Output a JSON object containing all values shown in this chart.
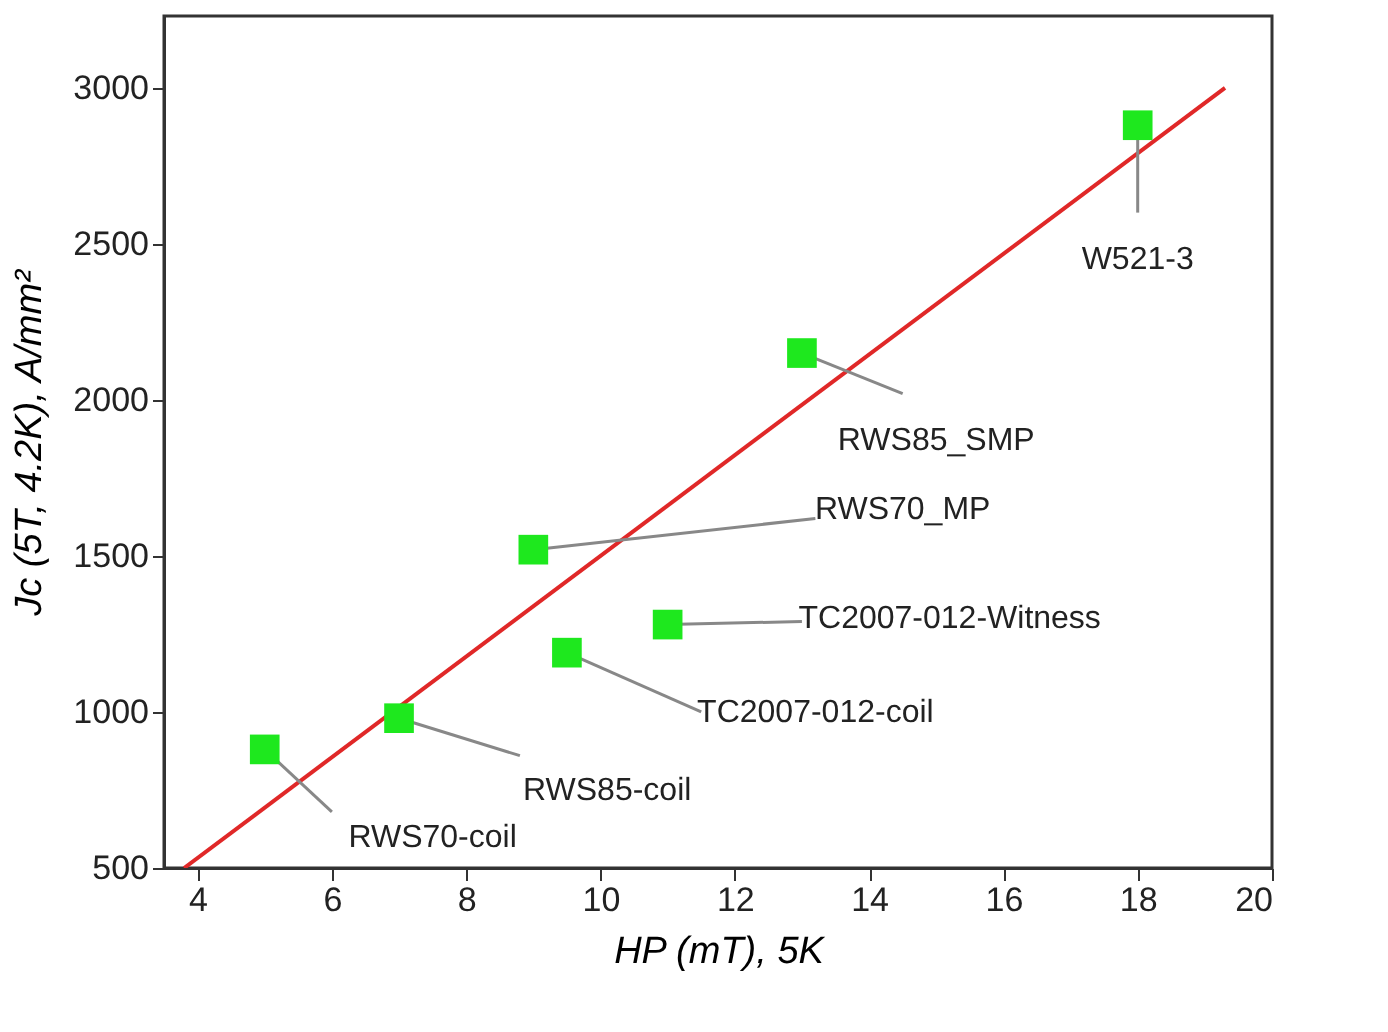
{
  "chart_data": {
    "type": "scatter",
    "xlabel": "HP (mT), 5K",
    "ylabel": "Jc (5T, 4.2K), A/mm²",
    "xlim": [
      3.5,
      20
    ],
    "xticks": [
      4,
      6,
      8,
      10,
      12,
      14,
      16,
      18,
      20
    ],
    "ylim": [
      500,
      3230
    ],
    "yticks": [
      500,
      1000,
      1500,
      2000,
      2500,
      3000
    ],
    "grid": false,
    "series": [
      {
        "marker": "square",
        "color": "#1ee81e",
        "x": [
          5,
          7,
          9,
          9.5,
          11,
          13,
          18
        ],
        "values": [
          880,
          980,
          1520,
          1190,
          1280,
          2150,
          2880
        ]
      },
      {
        "type": "line",
        "color": "#e02828",
        "x": [
          3.8,
          19.3
        ],
        "values": [
          500,
          3000
        ]
      }
    ],
    "annotations": [
      {
        "text": "RWS70-coil",
        "x": 5,
        "y": 880
      },
      {
        "text": "RWS85-coil",
        "x": 7,
        "y": 980
      },
      {
        "text": "RWS70_MP",
        "x": 9,
        "y": 1520
      },
      {
        "text": "TC2007-012-coil",
        "x": 9.5,
        "y": 1190
      },
      {
        "text": "TC2007-012-Witness",
        "x": 11,
        "y": 1280
      },
      {
        "text": "RWS85_SMP",
        "x": 13,
        "y": 2150
      },
      {
        "text": "W521-3",
        "x": 18,
        "y": 2880
      }
    ]
  }
}
